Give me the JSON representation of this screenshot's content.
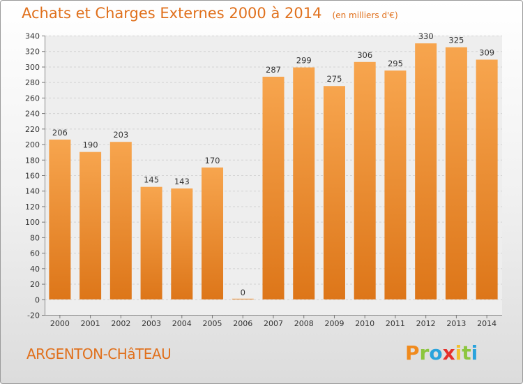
{
  "header": {
    "title": "Achats et Charges Externes 2000 à 2014",
    "subtitle": "(en milliers d'€)"
  },
  "footer": {
    "place": "ARGENTON-CHâTEAU",
    "logo": "Proxiti"
  },
  "colors": {
    "bar_top": "#f7a54e",
    "bar_bottom": "#dd7619",
    "title": "#e0701c"
  },
  "chart_data": {
    "type": "bar",
    "title": "Achats et Charges Externes 2000 à 2014",
    "subtitle": "(en milliers d'€)",
    "categories": [
      "2000",
      "2001",
      "2002",
      "2003",
      "2004",
      "2005",
      "2006",
      "2007",
      "2008",
      "2009",
      "2010",
      "2011",
      "2012",
      "2013",
      "2014"
    ],
    "values": [
      206,
      190,
      203,
      145,
      143,
      170,
      0,
      287,
      299,
      275,
      306,
      295,
      330,
      325,
      309
    ],
    "xlabel": "",
    "ylabel": "",
    "ylim": [
      -20,
      340
    ],
    "yticks": [
      -20,
      0,
      20,
      40,
      60,
      80,
      100,
      120,
      140,
      160,
      180,
      200,
      220,
      240,
      260,
      280,
      300,
      320,
      340
    ],
    "grid": true,
    "data_labels": true
  }
}
